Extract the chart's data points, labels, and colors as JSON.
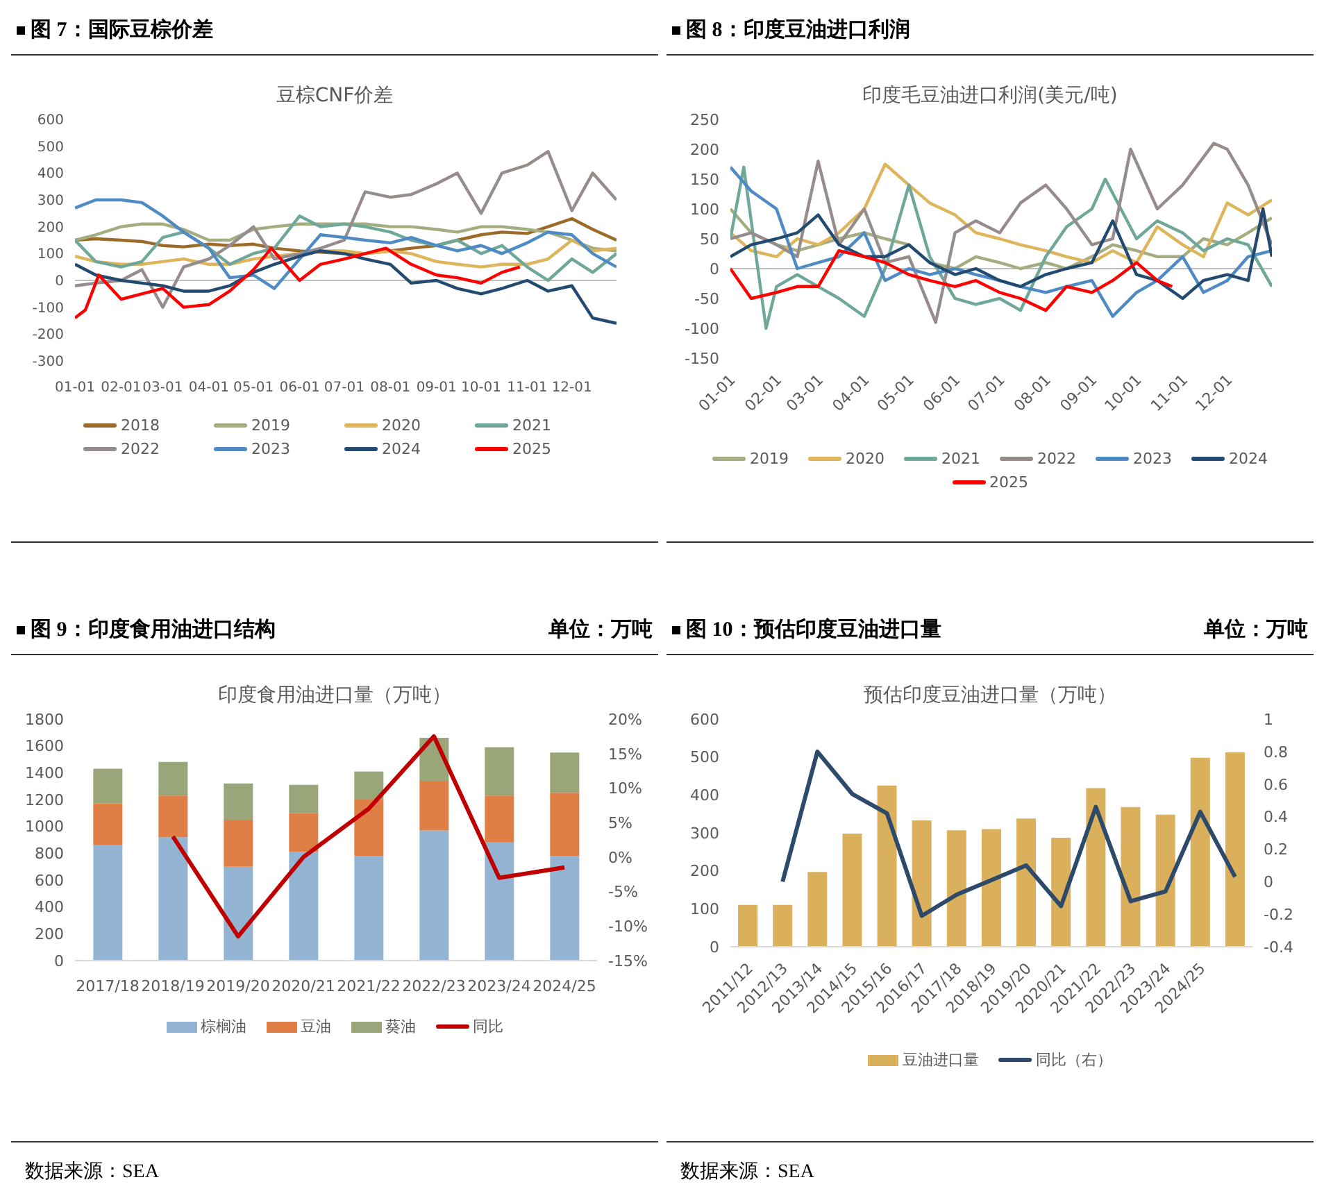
{
  "chart_data": [
    {
      "type": "line",
      "title": "图 7：国际豆棕价差",
      "subtitle": "豆棕CNF价差",
      "marker": "none",
      "legend": "bottom",
      "ylim": [
        -300,
        600
      ],
      "yticks": [
        -300,
        -200,
        -100,
        0,
        100,
        200,
        300,
        400,
        500,
        600
      ],
      "xlim": [
        "--01-01",
        "--12-31"
      ],
      "xticks": [
        {
          "value": "--01-01",
          "label": "01-01"
        },
        {
          "value": "--02-01",
          "label": "02-01"
        },
        {
          "value": "--03-01",
          "label": "03-01"
        },
        {
          "value": "--04-01",
          "label": "04-01"
        },
        {
          "value": "--05-01",
          "label": "05-01"
        },
        {
          "value": "--06-01",
          "label": "06-01"
        },
        {
          "value": "--07-01",
          "label": "07-01"
        },
        {
          "value": "--08-01",
          "label": "08-01"
        },
        {
          "value": "--09-01",
          "label": "09-01"
        },
        {
          "value": "--10-01",
          "label": "10-01"
        },
        {
          "value": "--11-01",
          "label": "11-01"
        },
        {
          "value": "--12-01",
          "label": "12-01"
        }
      ],
      "x": [
        "--01-01",
        "--01-15",
        "--02-01",
        "--02-15",
        "--03-01",
        "--03-15",
        "--04-01",
        "--04-15",
        "--05-01",
        "--05-15",
        "--06-01",
        "--06-15",
        "--07-01",
        "--07-15",
        "--08-01",
        "--08-15",
        "--09-01",
        "--09-15",
        "--10-01",
        "--10-15",
        "--11-01",
        "--11-15",
        "--12-01",
        "--12-15",
        "--12-31"
      ],
      "series": [
        {
          "name": "2018",
          "color": "#9c6b2a",
          "values": [
            150,
            155,
            150,
            145,
            130,
            125,
            135,
            130,
            135,
            120,
            110,
            105,
            100,
            100,
            110,
            120,
            130,
            150,
            170,
            180,
            175,
            200,
            230,
            190,
            150
          ]
        },
        {
          "name": "2019",
          "color": "#a3ad80",
          "values": [
            150,
            170,
            200,
            210,
            210,
            190,
            150,
            150,
            190,
            200,
            210,
            210,
            210,
            210,
            200,
            200,
            190,
            180,
            200,
            200,
            190,
            180,
            150,
            120,
            110
          ]
        },
        {
          "name": "2020",
          "color": "#deb55a",
          "values": [
            90,
            70,
            60,
            60,
            70,
            80,
            60,
            60,
            80,
            90,
            100,
            110,
            110,
            100,
            110,
            100,
            70,
            60,
            50,
            60,
            60,
            80,
            150,
            110,
            120
          ]
        },
        {
          "name": "2021",
          "color": "#6fa89a",
          "values": [
            150,
            70,
            50,
            70,
            160,
            180,
            120,
            60,
            100,
            120,
            240,
            200,
            210,
            200,
            180,
            150,
            130,
            150,
            100,
            130,
            50,
            0,
            80,
            30,
            100
          ]
        },
        {
          "name": "2022",
          "color": "#978c8c",
          "values": [
            -20,
            -10,
            0,
            40,
            -100,
            50,
            80,
            130,
            200,
            80,
            100,
            120,
            150,
            330,
            310,
            320,
            360,
            400,
            250,
            400,
            430,
            480,
            260,
            400,
            300
          ]
        },
        {
          "name": "2023",
          "color": "#4e8ac4",
          "values": [
            270,
            300,
            300,
            290,
            240,
            180,
            120,
            10,
            20,
            -30,
            80,
            170,
            160,
            150,
            140,
            160,
            130,
            110,
            130,
            100,
            140,
            180,
            170,
            100,
            50
          ]
        },
        {
          "name": "2024",
          "color": "#234a70",
          "values": [
            60,
            20,
            0,
            -10,
            -20,
            -40,
            -40,
            -20,
            30,
            60,
            90,
            110,
            100,
            80,
            60,
            -10,
            0,
            -30,
            -50,
            -30,
            0,
            -40,
            -20,
            -140,
            -160
          ]
        },
        {
          "name": "2025",
          "color": "#ff0000",
          "x": [
            "--01-01",
            "--01-08",
            "--01-17",
            "--02-01",
            "--02-15",
            "--03-01",
            "--03-15",
            "--04-01",
            "--04-15",
            "--05-01",
            "--05-13",
            "--06-01",
            "--06-15",
            "--07-01",
            "--07-15",
            "--07-29",
            "--08-15",
            "--09-01",
            "--09-15",
            "--10-01",
            "--10-15",
            "--10-27"
          ],
          "values": [
            -140,
            -110,
            20,
            -70,
            -50,
            -30,
            -100,
            -90,
            -40,
            40,
            120,
            0,
            60,
            80,
            100,
            120,
            60,
            20,
            10,
            -10,
            30,
            50
          ]
        }
      ]
    },
    {
      "type": "line",
      "title": "图 8：印度豆油进口利润",
      "subtitle": "印度毛豆油进口利润(美元/吨)",
      "marker": "none",
      "legend": "bottom",
      "ylim": [
        -150,
        250
      ],
      "yticks": [
        -150,
        -100,
        -50,
        0,
        50,
        100,
        150,
        200,
        250
      ],
      "xlim": [
        "--01-01",
        "--12-31"
      ],
      "xticks": [
        {
          "value": "--01-01",
          "label": "01-01"
        },
        {
          "value": "--02-01",
          "label": "02-01"
        },
        {
          "value": "--03-01",
          "label": "03-01"
        },
        {
          "value": "--04-01",
          "label": "04-01"
        },
        {
          "value": "--05-01",
          "label": "05-01"
        },
        {
          "value": "--06-01",
          "label": "06-01"
        },
        {
          "value": "--07-01",
          "label": "07-01"
        },
        {
          "value": "--08-01",
          "label": "08-01"
        },
        {
          "value": "--09-01",
          "label": "09-01"
        },
        {
          "value": "--10-01",
          "label": "10-01"
        },
        {
          "value": "--11-01",
          "label": "11-01"
        },
        {
          "value": "--12-01",
          "label": "12-01"
        }
      ],
      "x": [
        "--01-01",
        "--01-15",
        "--02-01",
        "--02-15",
        "--03-01",
        "--03-15",
        "--04-01",
        "--04-15",
        "--05-01",
        "--05-15",
        "--06-01",
        "--06-15",
        "--07-01",
        "--07-15",
        "--08-01",
        "--08-15",
        "--09-01",
        "--09-15",
        "--10-01",
        "--10-15",
        "--11-01",
        "--11-15",
        "--12-01",
        "--12-15",
        "--12-31"
      ],
      "series": [
        {
          "name": "2019",
          "color": "#a3ad80",
          "values": [
            100,
            60,
            40,
            30,
            40,
            50,
            60,
            50,
            40,
            10,
            0,
            20,
            10,
            0,
            10,
            0,
            20,
            40,
            30,
            20,
            20,
            50,
            40,
            60,
            85
          ]
        },
        {
          "name": "2020",
          "color": "#deb55a",
          "values": [
            60,
            30,
            20,
            50,
            40,
            60,
            100,
            175,
            140,
            110,
            90,
            60,
            50,
            40,
            30,
            20,
            10,
            30,
            10,
            70,
            40,
            20,
            110,
            90,
            115
          ]
        },
        {
          "name": "2021",
          "color": "#6fa89a",
          "x": [
            "--01-01",
            "--01-10",
            "--01-25",
            "--02-01",
            "--02-15",
            "--03-01",
            "--03-15",
            "--04-01",
            "--04-15",
            "--05-01",
            "--05-15",
            "--06-01",
            "--06-15",
            "--07-01",
            "--07-15",
            "--08-01",
            "--08-15",
            "--09-01",
            "--09-10",
            "--10-01",
            "--10-15",
            "--11-01",
            "--11-15",
            "--12-01",
            "--12-15",
            "--12-31"
          ],
          "values": [
            50,
            170,
            -100,
            -30,
            -10,
            -30,
            -50,
            -80,
            0,
            140,
            20,
            -50,
            -60,
            -50,
            -70,
            20,
            70,
            100,
            150,
            50,
            80,
            60,
            30,
            50,
            40,
            -30
          ]
        },
        {
          "name": "2022",
          "color": "#978c8c",
          "x": [
            "--01-01",
            "--01-15",
            "--02-01",
            "--02-15",
            "--03-01",
            "--03-15",
            "--04-01",
            "--04-15",
            "--05-01",
            "--05-19",
            "--06-01",
            "--06-15",
            "--07-01",
            "--07-15",
            "--08-01",
            "--08-15",
            "--09-01",
            "--09-15",
            "--09-27",
            "--10-15",
            "--11-01",
            "--11-22",
            "--12-01",
            "--12-15",
            "--12-31"
          ],
          "values": [
            50,
            60,
            40,
            20,
            180,
            40,
            100,
            10,
            20,
            -90,
            60,
            80,
            60,
            110,
            140,
            100,
            40,
            50,
            200,
            100,
            140,
            210,
            200,
            140,
            40
          ]
        },
        {
          "name": "2023",
          "color": "#4e8ac4",
          "values": [
            170,
            130,
            100,
            0,
            10,
            20,
            60,
            -20,
            0,
            -10,
            0,
            -10,
            -20,
            -30,
            -40,
            -30,
            -20,
            -80,
            -40,
            -20,
            20,
            -40,
            -20,
            20,
            30
          ]
        },
        {
          "name": "2024",
          "color": "#234a70",
          "x": [
            "--01-01",
            "--01-15",
            "--02-01",
            "--02-15",
            "--03-01",
            "--03-15",
            "--04-01",
            "--04-15",
            "--05-01",
            "--05-15",
            "--06-01",
            "--06-15",
            "--07-01",
            "--07-15",
            "--08-01",
            "--08-15",
            "--09-01",
            "--09-15",
            "--10-01",
            "--10-15",
            "--11-01",
            "--11-15",
            "--12-01",
            "--12-15",
            "--12-25",
            "--12-31"
          ],
          "values": [
            20,
            40,
            50,
            60,
            90,
            40,
            20,
            20,
            40,
            10,
            -10,
            0,
            -20,
            -30,
            -10,
            0,
            10,
            80,
            -10,
            -20,
            -50,
            -20,
            -10,
            -20,
            100,
            20
          ]
        },
        {
          "name": "2025",
          "color": "#ff0000",
          "x": [
            "--01-01",
            "--01-15",
            "--02-01",
            "--02-15",
            "--03-01",
            "--03-15",
            "--04-01",
            "--04-15",
            "--05-01",
            "--05-15",
            "--06-01",
            "--06-15",
            "--07-01",
            "--07-15",
            "--08-01",
            "--08-15",
            "--09-01",
            "--09-15",
            "--10-01",
            "--10-15",
            "--10-25"
          ],
          "values": [
            0,
            -50,
            -40,
            -30,
            -30,
            30,
            20,
            10,
            -10,
            -20,
            -30,
            -20,
            -40,
            -50,
            -70,
            -30,
            -40,
            -20,
            10,
            -20,
            -30
          ]
        }
      ]
    },
    {
      "type": "bar",
      "title": "图 9：印度食用油进口结构",
      "subtitle": "印度食用油进口量（万吨）",
      "stacked": true,
      "legend": "bottom",
      "marker": "none",
      "annotations": [
        "单位：万吨",
        "数据来源：SEA"
      ],
      "categories": [
        "2017/18",
        "2018/19",
        "2019/20",
        "2020/21",
        "2021/22",
        "2022/23",
        "2023/24",
        "2024/25"
      ],
      "ylim": [
        0,
        1800
      ],
      "yticks": [
        0,
        200,
        400,
        600,
        800,
        1000,
        1200,
        1400,
        1600,
        1800
      ],
      "y2lim": [
        -15,
        20
      ],
      "y2ticks": [
        {
          "value": -15,
          "label": "-15%"
        },
        {
          "value": -10,
          "label": "-10%"
        },
        {
          "value": -5,
          "label": "-5%"
        },
        {
          "value": 0,
          "label": "0%"
        },
        {
          "value": 5,
          "label": "5%"
        },
        {
          "value": 10,
          "label": "10%"
        },
        {
          "value": 15,
          "label": "15%"
        },
        {
          "value": 20,
          "label": "20%"
        }
      ],
      "series": [
        {
          "name": "棕榈油",
          "color": "#94b4d4",
          "values": [
            860,
            920,
            700,
            810,
            780,
            970,
            880,
            780
          ]
        },
        {
          "name": "豆油",
          "color": "#e07f45",
          "values": [
            310,
            310,
            350,
            290,
            420,
            370,
            350,
            470
          ]
        },
        {
          "name": "葵油",
          "color": "#9aa67a",
          "values": [
            260,
            250,
            270,
            210,
            210,
            320,
            360,
            300
          ]
        },
        {
          "name": "同比",
          "type": "line",
          "axis": "y2",
          "color": "#c00000",
          "values": [
            null,
            3,
            -11.5,
            0,
            7,
            17.5,
            -3,
            -1.5
          ]
        }
      ]
    },
    {
      "type": "bar",
      "title": "图 10：预估印度豆油进口量",
      "subtitle": "预估印度豆油进口量（万吨）",
      "legend": "bottom",
      "marker": "none",
      "annotations": [
        "单位：万吨",
        "数据来源：SEA"
      ],
      "categories": [
        "2011/12",
        "2012/13",
        "2013/14",
        "2014/15",
        "2015/16",
        "2016/17",
        "2017/18",
        "2018/19",
        "2019/20",
        "2020/21",
        "2021/22",
        "2022/23",
        "2023/24",
        "2024/25",
        null
      ],
      "ylim": [
        0,
        600
      ],
      "yticks": [
        0,
        100,
        200,
        300,
        400,
        500,
        600
      ],
      "y2lim": [
        -0.4,
        1
      ],
      "y2ticks": [
        -0.4,
        -0.2,
        0,
        0.2,
        0.4,
        0.6,
        0.8,
        1
      ],
      "series": [
        {
          "name": "豆油进口量",
          "color": "#dbb05c",
          "values": [
            110,
            110,
            197,
            298,
            425,
            333,
            307,
            310,
            338,
            287,
            418,
            368,
            348,
            498,
            512
          ]
        },
        {
          "name": "同比（右）",
          "type": "line",
          "axis": "y2",
          "color": "#2e4a6b",
          "values": [
            null,
            0,
            0.8,
            0.54,
            0.42,
            -0.21,
            -0.08,
            0.01,
            0.1,
            -0.15,
            0.46,
            -0.12,
            -0.06,
            0.43,
            0.03
          ]
        }
      ]
    }
  ]
}
